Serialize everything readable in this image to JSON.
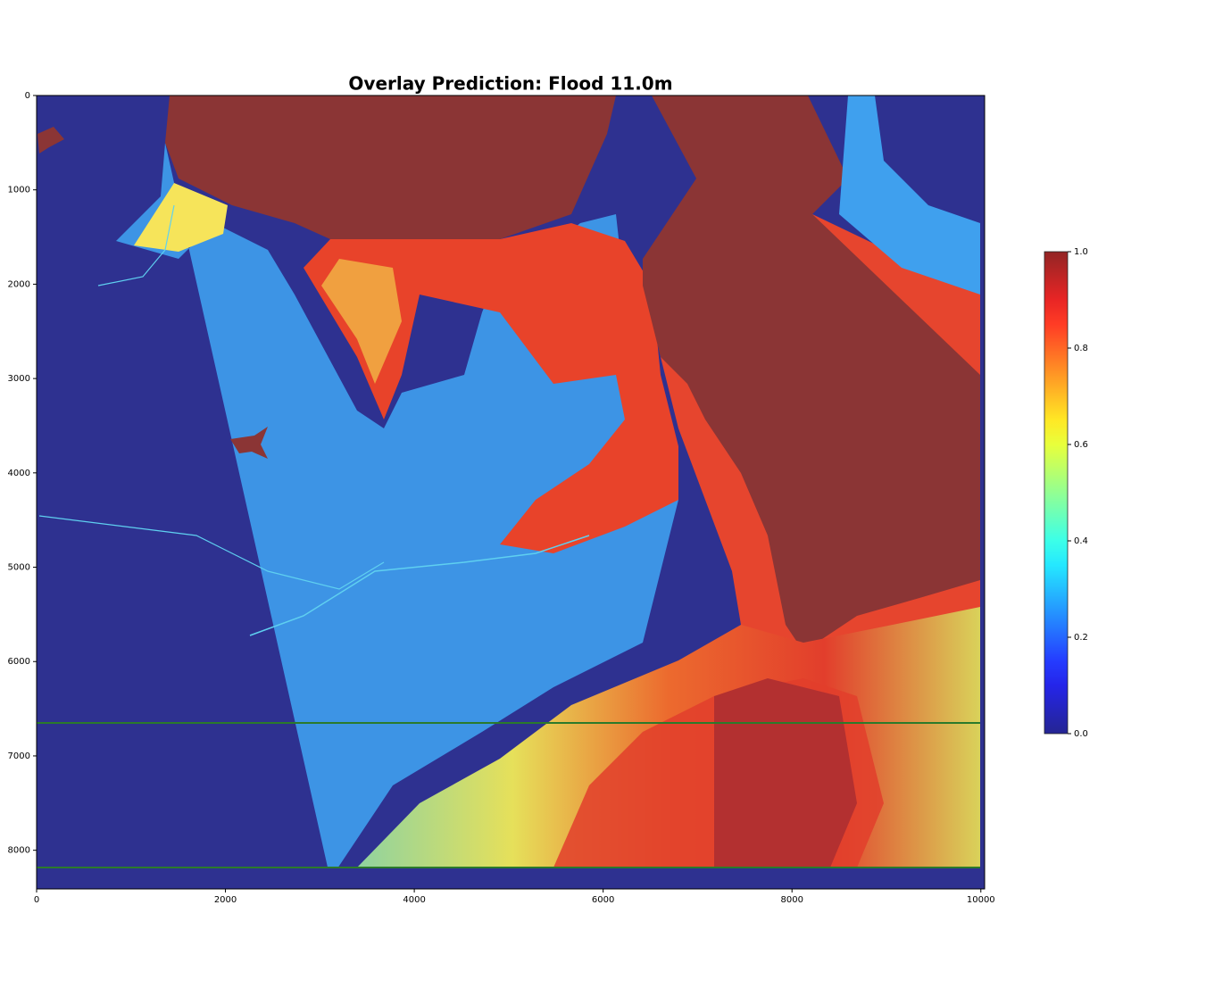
{
  "chart_data": {
    "type": "heatmap",
    "title": "Overlay Prediction: Flood 11.0m",
    "xlim": [
      0,
      10040
    ],
    "xticks": [
      0,
      2000,
      4000,
      6000,
      8000,
      10000
    ],
    "ylim": [
      8410,
      0
    ],
    "yticks": [
      0,
      1000,
      2000,
      3000,
      4000,
      5000,
      6000,
      7000,
      8000
    ],
    "colorbar": {
      "lim": [
        0,
        1
      ],
      "colormap": "jet",
      "ticks": [
        {
          "value": 0,
          "label": "0.0"
        },
        {
          "value": 0.2,
          "label": "0.2"
        },
        {
          "value": 0.4,
          "label": "0.4"
        },
        {
          "value": 0.6,
          "label": "0.6"
        },
        {
          "value": 0.8,
          "label": "0.8"
        },
        {
          "value": 1,
          "label": "1.0"
        }
      ]
    }
  }
}
